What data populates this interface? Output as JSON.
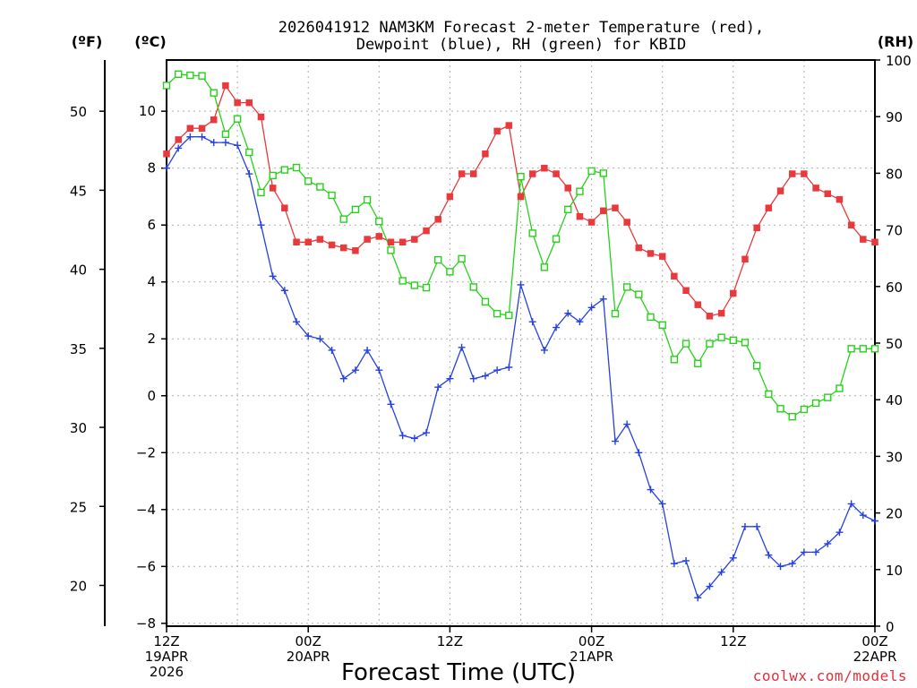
{
  "chart_data": {
    "type": "line",
    "title_line1": "2026041912 NAM3KM Forecast 2-meter Temperature (red),",
    "title_line2": "Dewpoint (blue), RH (green) for KBID",
    "unit_left_f": "(ºF)",
    "unit_left_c": "(ºC)",
    "unit_right": "(RH)",
    "xlabel": "Forecast Time (UTC)",
    "credit": "coolwx.com/models",
    "x_hours_range": [
      0,
      60
    ],
    "celsius_axis": {
      "range": [
        -8.1,
        11.8
      ],
      "ticks": [
        -8,
        -6,
        -4,
        -2,
        0,
        2,
        4,
        6,
        8,
        10
      ],
      "tick_labels": [
        "−8",
        "−6",
        "−4",
        "−2",
        "0",
        "2",
        "4",
        "6",
        "8",
        "10"
      ]
    },
    "fahrenheit_axis": {
      "ticks": [
        20,
        25,
        30,
        35,
        40,
        45,
        50
      ],
      "tick_labels": [
        "20",
        "25",
        "30",
        "35",
        "40",
        "45",
        "50"
      ]
    },
    "rh_axis": {
      "range": [
        0,
        100
      ],
      "ticks": [
        0,
        10,
        20,
        30,
        40,
        50,
        60,
        70,
        80,
        90,
        100
      ],
      "tick_labels": [
        "0",
        "10",
        "20",
        "30",
        "40",
        "50",
        "60",
        "70",
        "80",
        "90",
        "100"
      ]
    },
    "x_ticks": [
      {
        "hour": 0,
        "lines": [
          "12Z",
          "19APR",
          "2026"
        ]
      },
      {
        "hour": 12,
        "lines": [
          "00Z",
          "20APR"
        ]
      },
      {
        "hour": 24,
        "lines": [
          "12Z"
        ]
      },
      {
        "hour": 36,
        "lines": [
          "00Z",
          "21APR"
        ]
      },
      {
        "hour": 48,
        "lines": [
          "12Z"
        ]
      },
      {
        "hour": 60,
        "lines": [
          "00Z",
          "22APR"
        ]
      }
    ],
    "series": [
      {
        "name": "2-meter Temperature",
        "units": "C",
        "color": "#e8393c",
        "marker": "filled-square",
        "values": [
          8.5,
          9.0,
          9.4,
          9.4,
          9.7,
          10.9,
          10.3,
          10.3,
          9.8,
          7.3,
          6.6,
          5.4,
          5.4,
          5.5,
          5.3,
          5.2,
          5.1,
          5.5,
          5.6,
          5.4,
          5.4,
          5.5,
          5.8,
          6.2,
          7.0,
          7.8,
          7.8,
          8.5,
          9.3,
          9.5,
          7.0,
          7.8,
          8.0,
          7.8,
          7.3,
          6.3,
          6.1,
          6.5,
          6.6,
          6.1,
          5.2,
          5.0,
          4.9,
          4.2,
          3.7,
          3.2,
          2.8,
          2.9,
          3.6,
          4.8,
          5.9,
          6.6,
          7.2,
          7.8,
          7.8,
          7.3,
          7.1,
          6.9,
          6.0,
          5.5,
          5.4
        ]
      },
      {
        "name": "Dewpoint",
        "units": "C",
        "color": "#2641e0",
        "marker": "plus",
        "values": [
          8.0,
          8.7,
          9.1,
          9.1,
          8.9,
          8.9,
          8.8,
          7.8,
          6.0,
          4.2,
          3.7,
          2.6,
          2.1,
          2.0,
          1.6,
          0.6,
          0.9,
          1.6,
          0.9,
          -0.3,
          -1.4,
          -1.5,
          -1.3,
          0.3,
          0.6,
          1.7,
          0.6,
          0.7,
          0.9,
          1.0,
          3.9,
          2.6,
          1.6,
          2.4,
          2.9,
          2.6,
          3.1,
          3.4,
          -1.6,
          -1.0,
          -2.0,
          -3.3,
          -3.8,
          -5.9,
          -5.8,
          -7.1,
          -6.7,
          -6.2,
          -5.7,
          -4.6,
          -4.6,
          -5.6,
          -6.0,
          -5.9,
          -5.5,
          -5.5,
          -5.2,
          -4.8,
          -3.8,
          -4.2,
          -4.4
        ]
      },
      {
        "name": "Relative Humidity",
        "units": "%",
        "color": "#27d11a",
        "marker": "open-square",
        "values": [
          95.5,
          97.5,
          97.3,
          97.2,
          94.2,
          86.9,
          89.6,
          83.7,
          76.6,
          79.6,
          80.6,
          81.0,
          78.6,
          77.6,
          76.1,
          71.9,
          73.6,
          75.3,
          71.5,
          66.4,
          61.0,
          60.2,
          59.8,
          64.7,
          62.6,
          64.9,
          59.9,
          57.3,
          55.2,
          54.9,
          79.4,
          69.4,
          63.4,
          68.4,
          73.6,
          76.8,
          80.4,
          80.0,
          55.2,
          59.9,
          58.6,
          54.6,
          53.2,
          47.1,
          49.9,
          46.4,
          49.9,
          51.0,
          50.5,
          50.1,
          46.0,
          41.0,
          38.4,
          37.0,
          38.3,
          39.4,
          40.4,
          42.0,
          49.0,
          49.0,
          49.0
        ]
      }
    ]
  }
}
